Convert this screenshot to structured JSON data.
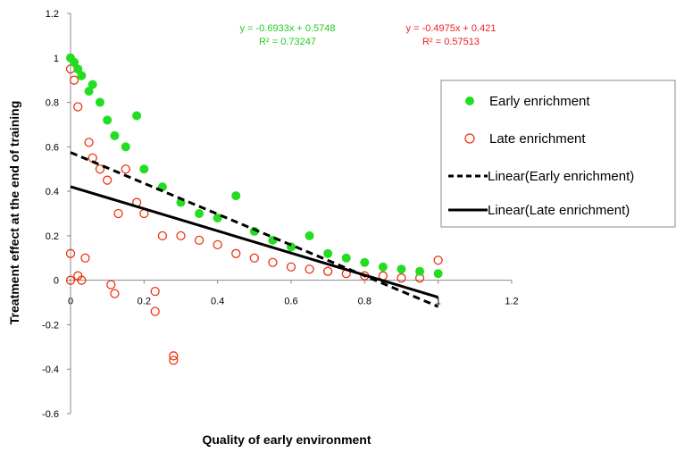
{
  "chart_data": {
    "type": "scatter",
    "title": "",
    "xlabel": "Quality of early environment",
    "ylabel": "Treatment effect at the end of training",
    "xlim": [
      0,
      1.2
    ],
    "ylim": [
      -0.6,
      1.2
    ],
    "x_ticks": [
      "0",
      "0.2",
      "0.4",
      "0.6",
      "0.8",
      "1",
      "1.2"
    ],
    "y_ticks": [
      "-0.6",
      "-0.4",
      "-0.2",
      "0",
      "0.2",
      "0.4",
      "0.6",
      "0.8",
      "1",
      "1.2"
    ],
    "grid": false,
    "legend_position": "right",
    "series": [
      {
        "name": "Early enrichment",
        "marker": "filled-circle",
        "color": "#22dd22",
        "points": [
          [
            0.0,
            1.0
          ],
          [
            0.01,
            0.98
          ],
          [
            0.02,
            0.95
          ],
          [
            0.03,
            0.92
          ],
          [
            0.05,
            0.85
          ],
          [
            0.06,
            0.88
          ],
          [
            0.08,
            0.8
          ],
          [
            0.1,
            0.72
          ],
          [
            0.12,
            0.65
          ],
          [
            0.15,
            0.6
          ],
          [
            0.18,
            0.74
          ],
          [
            0.2,
            0.5
          ],
          [
            0.25,
            0.42
          ],
          [
            0.3,
            0.35
          ],
          [
            0.35,
            0.3
          ],
          [
            0.4,
            0.28
          ],
          [
            0.45,
            0.38
          ],
          [
            0.5,
            0.22
          ],
          [
            0.55,
            0.18
          ],
          [
            0.6,
            0.15
          ],
          [
            0.65,
            0.2
          ],
          [
            0.7,
            0.12
          ],
          [
            0.75,
            0.1
          ],
          [
            0.8,
            0.08
          ],
          [
            0.85,
            0.06
          ],
          [
            0.9,
            0.05
          ],
          [
            0.95,
            0.04
          ],
          [
            1.0,
            0.03
          ]
        ]
      },
      {
        "name": "Late enrichment",
        "marker": "open-circle",
        "color": "#ee3311",
        "points": [
          [
            0.0,
            0.95
          ],
          [
            0.0,
            0.12
          ],
          [
            0.0,
            0.0
          ],
          [
            0.01,
            0.9
          ],
          [
            0.02,
            0.78
          ],
          [
            0.02,
            0.02
          ],
          [
            0.03,
            0.0
          ],
          [
            0.04,
            0.1
          ],
          [
            0.05,
            0.62
          ],
          [
            0.06,
            0.55
          ],
          [
            0.08,
            0.5
          ],
          [
            0.1,
            0.45
          ],
          [
            0.11,
            -0.02
          ],
          [
            0.12,
            -0.06
          ],
          [
            0.13,
            0.3
          ],
          [
            0.15,
            0.5
          ],
          [
            0.18,
            0.35
          ],
          [
            0.2,
            0.3
          ],
          [
            0.23,
            -0.05
          ],
          [
            0.23,
            -0.14
          ],
          [
            0.25,
            0.2
          ],
          [
            0.28,
            -0.34
          ],
          [
            0.28,
            -0.36
          ],
          [
            0.3,
            0.2
          ],
          [
            0.35,
            0.18
          ],
          [
            0.4,
            0.16
          ],
          [
            0.45,
            0.12
          ],
          [
            0.5,
            0.1
          ],
          [
            0.55,
            0.08
          ],
          [
            0.6,
            0.06
          ],
          [
            0.65,
            0.05
          ],
          [
            0.7,
            0.04
          ],
          [
            0.75,
            0.03
          ],
          [
            0.8,
            0.02
          ],
          [
            0.85,
            0.02
          ],
          [
            0.9,
            0.01
          ],
          [
            0.95,
            0.01
          ],
          [
            1.0,
            0.09
          ]
        ]
      }
    ],
    "trendlines": [
      {
        "name": "Linear(Early enrichment)",
        "slope": -0.6933,
        "intercept": 0.5748,
        "x_range": [
          0,
          1.0
        ],
        "style": "dashed",
        "color": "#000000",
        "equation": "y = -0.6933x + 0.5748",
        "r2": "R² = 0.73247",
        "label_color": "#22cc22"
      },
      {
        "name": "Linear(Late enrichment)",
        "slope": -0.4975,
        "intercept": 0.421,
        "x_range": [
          0,
          1.0
        ],
        "style": "solid",
        "color": "#000000",
        "equation": "y = -0.4975x + 0.421",
        "r2": "R² = 0.57513",
        "label_color": "#ee2222"
      }
    ]
  }
}
